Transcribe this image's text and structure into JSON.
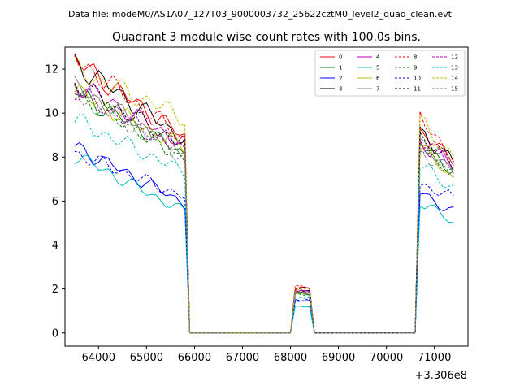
{
  "supertitle": "Data file: modeM0/AS1A07_127T03_9000003732_25622cztM0_level2_quad_clean.evt",
  "chart_data": {
    "type": "line",
    "title": "Quadrant 3 module wise count rates with 100.0s bins.",
    "xlabel": "",
    "ylabel": "",
    "x_offset_label": "+3.306e8",
    "xlim": [
      63300,
      71700
    ],
    "ylim": [
      -0.6,
      13.0
    ],
    "xticks": [
      64000,
      65000,
      66000,
      67000,
      68000,
      69000,
      70000,
      71000
    ],
    "xtick_labels": [
      "64000",
      "65000",
      "66000",
      "67000",
      "68000",
      "69000",
      "70000",
      "71000"
    ],
    "yticks": [
      0,
      2,
      4,
      6,
      8,
      10,
      12
    ],
    "ytick_labels": [
      "0",
      "2",
      "4",
      "6",
      "8",
      "10",
      "12"
    ],
    "grid": false,
    "legend_position": "top-right",
    "segments": [
      {
        "x_start": 63500,
        "x_end": 65800,
        "shape": "decline"
      },
      {
        "x_start": 68100,
        "x_end": 68400,
        "shape": "flat"
      },
      {
        "x_start": 70700,
        "x_end": 71400,
        "shape": "decline"
      }
    ],
    "series": [
      {
        "name": "0",
        "color": "#ff0000",
        "dashed": false,
        "segment_levels": [
          [
            12.4,
            8.9
          ],
          [
            2.0
          ],
          [
            9.0,
            8.0
          ]
        ]
      },
      {
        "name": "1",
        "color": "#008000",
        "dashed": false,
        "segment_levels": [
          [
            11.0,
            8.1
          ],
          [
            1.8
          ],
          [
            8.6,
            7.4
          ]
        ]
      },
      {
        "name": "2",
        "color": "#0000ff",
        "dashed": false,
        "segment_levels": [
          [
            8.5,
            5.9
          ],
          [
            1.5
          ],
          [
            6.4,
            5.5
          ]
        ]
      },
      {
        "name": "3",
        "color": "#000000",
        "dashed": false,
        "segment_levels": [
          [
            12.3,
            8.8
          ],
          [
            1.9
          ],
          [
            9.2,
            7.7
          ]
        ]
      },
      {
        "name": "4",
        "color": "#bf00bf",
        "dashed": false,
        "segment_levels": [
          [
            11.4,
            8.6
          ],
          [
            1.9
          ],
          [
            8.7,
            7.6
          ]
        ]
      },
      {
        "name": "5",
        "color": "#00bfbf",
        "dashed": false,
        "segment_levels": [
          [
            8.1,
            5.5
          ],
          [
            1.2
          ],
          [
            6.0,
            5.0
          ]
        ]
      },
      {
        "name": "6",
        "color": "#bfbf00",
        "dashed": false,
        "segment_levels": [
          [
            11.0,
            8.4
          ],
          [
            1.8
          ],
          [
            8.5,
            7.0
          ]
        ]
      },
      {
        "name": "7",
        "color": "#808080",
        "dashed": false,
        "segment_levels": [
          [
            11.2,
            8.3
          ],
          [
            1.8
          ],
          [
            8.5,
            7.5
          ]
        ]
      },
      {
        "name": "8",
        "color": "#ff0000",
        "dashed": true,
        "segment_levels": [
          [
            12.5,
            8.8
          ],
          [
            2.1
          ],
          [
            9.8,
            8.0
          ]
        ]
      },
      {
        "name": "9",
        "color": "#008000",
        "dashed": true,
        "segment_levels": [
          [
            10.9,
            7.9
          ],
          [
            1.8
          ],
          [
            8.5,
            7.2
          ]
        ]
      },
      {
        "name": "10",
        "color": "#0000ff",
        "dashed": true,
        "segment_levels": [
          [
            8.2,
            6.2
          ],
          [
            1.5
          ],
          [
            6.8,
            6.1
          ]
        ]
      },
      {
        "name": "11",
        "color": "#000000",
        "dashed": true,
        "segment_levels": [
          [
            11.3,
            8.5
          ],
          [
            2.0
          ],
          [
            9.0,
            7.6
          ]
        ]
      },
      {
        "name": "12",
        "color": "#bf00bf",
        "dashed": true,
        "segment_levels": [
          [
            11.0,
            8.2
          ],
          [
            1.9
          ],
          [
            8.8,
            7.7
          ]
        ]
      },
      {
        "name": "13",
        "color": "#00bfbf",
        "dashed": true,
        "segment_levels": [
          [
            9.7,
            7.3
          ],
          [
            1.6
          ],
          [
            7.6,
            6.6
          ]
        ]
      },
      {
        "name": "14",
        "color": "#bfbf00",
        "dashed": true,
        "segment_levels": [
          [
            12.0,
            9.8
          ],
          [
            2.0
          ],
          [
            9.6,
            8.0
          ]
        ]
      },
      {
        "name": "15",
        "color": "#808080",
        "dashed": true,
        "segment_levels": [
          [
            11.0,
            8.0
          ],
          [
            1.8
          ],
          [
            8.3,
            7.2
          ]
        ]
      }
    ]
  }
}
